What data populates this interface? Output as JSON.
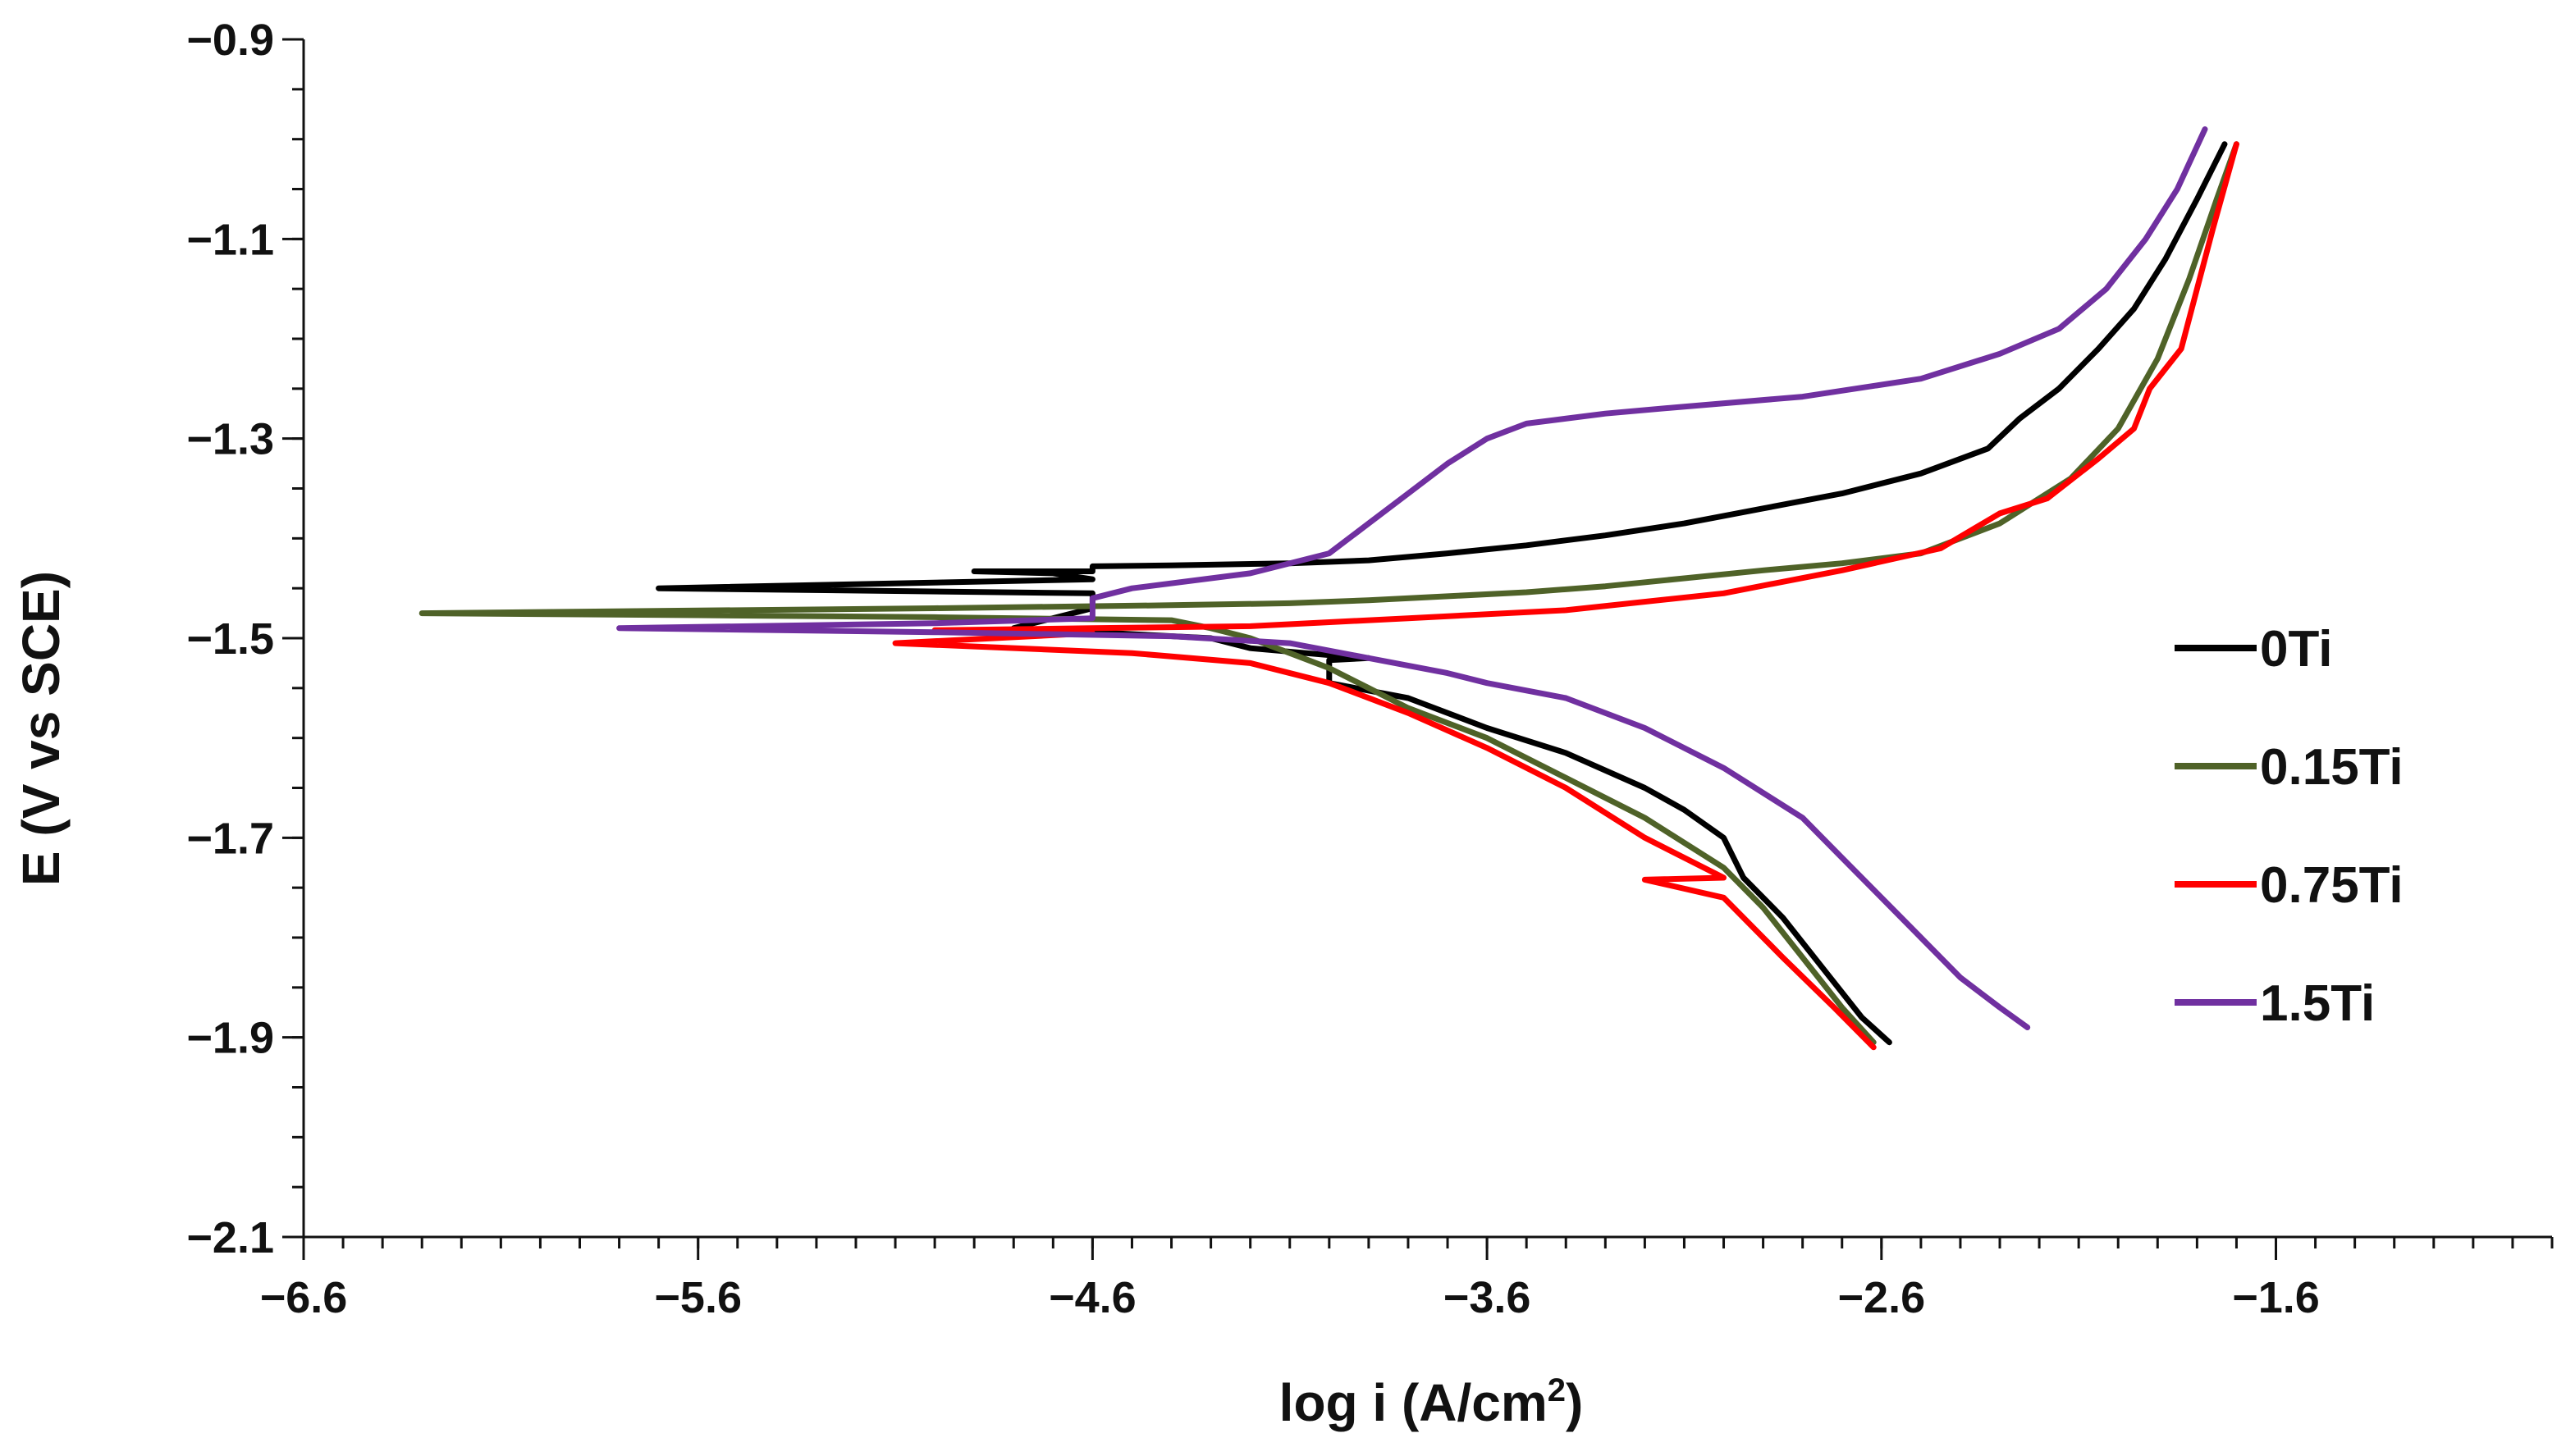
{
  "chart_data": {
    "type": "line",
    "title": "",
    "xlabel": "log i (A/cm",
    "xlabel_sup": "2",
    "xlabel_close": ")",
    "ylabel": "E (V vs SCE)",
    "xlim": [
      -6.6,
      -0.9
    ],
    "ylim": [
      -2.1,
      -0.9
    ],
    "x_ticks": [
      -6.6,
      -5.6,
      -4.6,
      -3.6,
      -2.6,
      -1.6
    ],
    "x_tick_labels": [
      "−6.6",
      "−5.6",
      "−4.6",
      "−3.6",
      "−2.6",
      "−1.6"
    ],
    "y_ticks": [
      -0.9,
      -1.1,
      -1.3,
      -1.5,
      -1.7,
      -1.9,
      -2.1
    ],
    "y_tick_labels": [
      "−0.9",
      "−1.1",
      "−1.3",
      "−1.5",
      "−1.7",
      "−1.9",
      "−2.1"
    ],
    "x_minor_step": 0.1,
    "y_minor_step": 0.05,
    "grid": false,
    "legend_position": "right",
    "series": [
      {
        "name": "0Ti",
        "color": "#000000",
        "points": [
          [
            -1.73,
            -1.005
          ],
          [
            -1.8,
            -1.06
          ],
          [
            -1.88,
            -1.12
          ],
          [
            -1.96,
            -1.17
          ],
          [
            -2.05,
            -1.21
          ],
          [
            -2.15,
            -1.25
          ],
          [
            -2.25,
            -1.28
          ],
          [
            -2.33,
            -1.31
          ],
          [
            -2.5,
            -1.335
          ],
          [
            -2.7,
            -1.355
          ],
          [
            -2.9,
            -1.37
          ],
          [
            -3.1,
            -1.385
          ],
          [
            -3.3,
            -1.397
          ],
          [
            -3.5,
            -1.407
          ],
          [
            -3.7,
            -1.415
          ],
          [
            -3.9,
            -1.422
          ],
          [
            -4.1,
            -1.425
          ],
          [
            -4.4,
            -1.427
          ],
          [
            -4.6,
            -1.428
          ],
          [
            -4.6,
            -1.433
          ],
          [
            -4.9,
            -1.433
          ],
          [
            -4.7,
            -1.435
          ],
          [
            -4.6,
            -1.441
          ],
          [
            -5.7,
            -1.45
          ],
          [
            -4.6,
            -1.455
          ],
          [
            -4.6,
            -1.47
          ],
          [
            -4.8,
            -1.49
          ],
          [
            -4.3,
            -1.5
          ],
          [
            -4.2,
            -1.51
          ],
          [
            -4.0,
            -1.517
          ],
          [
            -3.9,
            -1.52
          ],
          [
            -4.0,
            -1.522
          ],
          [
            -4.0,
            -1.545
          ],
          [
            -3.8,
            -1.56
          ],
          [
            -3.6,
            -1.59
          ],
          [
            -3.4,
            -1.615
          ],
          [
            -3.2,
            -1.65
          ],
          [
            -3.1,
            -1.672
          ],
          [
            -3.0,
            -1.7
          ],
          [
            -2.95,
            -1.74
          ],
          [
            -2.85,
            -1.78
          ],
          [
            -2.75,
            -1.83
          ],
          [
            -2.65,
            -1.88
          ],
          [
            -2.58,
            -1.905
          ]
        ]
      },
      {
        "name": "0.15Ti",
        "color": "#4f6228",
        "points": [
          [
            -1.7,
            -1.005
          ],
          [
            -1.75,
            -1.06
          ],
          [
            -1.82,
            -1.14
          ],
          [
            -1.9,
            -1.22
          ],
          [
            -2.0,
            -1.29
          ],
          [
            -2.12,
            -1.34
          ],
          [
            -2.3,
            -1.385
          ],
          [
            -2.5,
            -1.415
          ],
          [
            -2.7,
            -1.425
          ],
          [
            -2.9,
            -1.432
          ],
          [
            -3.1,
            -1.44
          ],
          [
            -3.3,
            -1.448
          ],
          [
            -3.5,
            -1.454
          ],
          [
            -3.7,
            -1.458
          ],
          [
            -3.9,
            -1.462
          ],
          [
            -4.1,
            -1.465
          ],
          [
            -4.4,
            -1.467
          ],
          [
            -5.0,
            -1.47
          ],
          [
            -6.3,
            -1.475
          ],
          [
            -5.6,
            -1.477
          ],
          [
            -5.0,
            -1.479
          ],
          [
            -4.4,
            -1.482
          ],
          [
            -4.3,
            -1.49
          ],
          [
            -4.2,
            -1.5
          ],
          [
            -4.1,
            -1.515
          ],
          [
            -4.0,
            -1.53
          ],
          [
            -3.9,
            -1.55
          ],
          [
            -3.8,
            -1.57
          ],
          [
            -3.6,
            -1.6
          ],
          [
            -3.4,
            -1.64
          ],
          [
            -3.2,
            -1.68
          ],
          [
            -3.0,
            -1.73
          ],
          [
            -2.9,
            -1.77
          ],
          [
            -2.8,
            -1.82
          ],
          [
            -2.7,
            -1.87
          ],
          [
            -2.62,
            -1.905
          ]
        ]
      },
      {
        "name": "0.75Ti",
        "color": "#ff0000",
        "points": [
          [
            -1.7,
            -1.005
          ],
          [
            -1.76,
            -1.09
          ],
          [
            -1.84,
            -1.21
          ],
          [
            -1.92,
            -1.25
          ],
          [
            -1.96,
            -1.29
          ],
          [
            -2.05,
            -1.32
          ],
          [
            -2.18,
            -1.36
          ],
          [
            -2.3,
            -1.375
          ],
          [
            -2.45,
            -1.41
          ],
          [
            -2.7,
            -1.432
          ],
          [
            -3.0,
            -1.455
          ],
          [
            -3.4,
            -1.472
          ],
          [
            -3.8,
            -1.48
          ],
          [
            -4.2,
            -1.488
          ],
          [
            -4.6,
            -1.49
          ],
          [
            -5.0,
            -1.492
          ],
          [
            -4.6,
            -1.495
          ],
          [
            -5.1,
            -1.505
          ],
          [
            -4.5,
            -1.515
          ],
          [
            -4.2,
            -1.525
          ],
          [
            -4.0,
            -1.545
          ],
          [
            -3.8,
            -1.575
          ],
          [
            -3.6,
            -1.61
          ],
          [
            -3.4,
            -1.65
          ],
          [
            -3.2,
            -1.7
          ],
          [
            -3.0,
            -1.74
          ],
          [
            -3.2,
            -1.742
          ],
          [
            -3.0,
            -1.76
          ],
          [
            -2.85,
            -1.82
          ],
          [
            -2.72,
            -1.87
          ],
          [
            -2.62,
            -1.91
          ]
        ]
      },
      {
        "name": "1.5Ti",
        "color": "#7030a0",
        "points": [
          [
            -1.78,
            -0.99
          ],
          [
            -1.85,
            -1.05
          ],
          [
            -1.93,
            -1.1
          ],
          [
            -2.03,
            -1.15
          ],
          [
            -2.15,
            -1.19
          ],
          [
            -2.3,
            -1.215
          ],
          [
            -2.5,
            -1.24
          ],
          [
            -2.8,
            -1.258
          ],
          [
            -3.1,
            -1.268
          ],
          [
            -3.3,
            -1.275
          ],
          [
            -3.5,
            -1.285
          ],
          [
            -3.6,
            -1.3
          ],
          [
            -3.7,
            -1.325
          ],
          [
            -3.8,
            -1.355
          ],
          [
            -3.9,
            -1.385
          ],
          [
            -4.0,
            -1.415
          ],
          [
            -4.2,
            -1.435
          ],
          [
            -4.5,
            -1.45
          ],
          [
            -4.6,
            -1.46
          ],
          [
            -4.6,
            -1.48
          ],
          [
            -5.0,
            -1.485
          ],
          [
            -5.8,
            -1.49
          ],
          [
            -5.0,
            -1.494
          ],
          [
            -4.4,
            -1.498
          ],
          [
            -4.1,
            -1.505
          ],
          [
            -3.9,
            -1.52
          ],
          [
            -3.7,
            -1.535
          ],
          [
            -3.6,
            -1.545
          ],
          [
            -3.4,
            -1.56
          ],
          [
            -3.2,
            -1.59
          ],
          [
            -3.0,
            -1.63
          ],
          [
            -2.8,
            -1.68
          ],
          [
            -2.7,
            -1.72
          ],
          [
            -2.6,
            -1.76
          ],
          [
            -2.5,
            -1.8
          ],
          [
            -2.4,
            -1.84
          ],
          [
            -2.3,
            -1.87
          ],
          [
            -2.23,
            -1.89
          ]
        ]
      }
    ]
  }
}
